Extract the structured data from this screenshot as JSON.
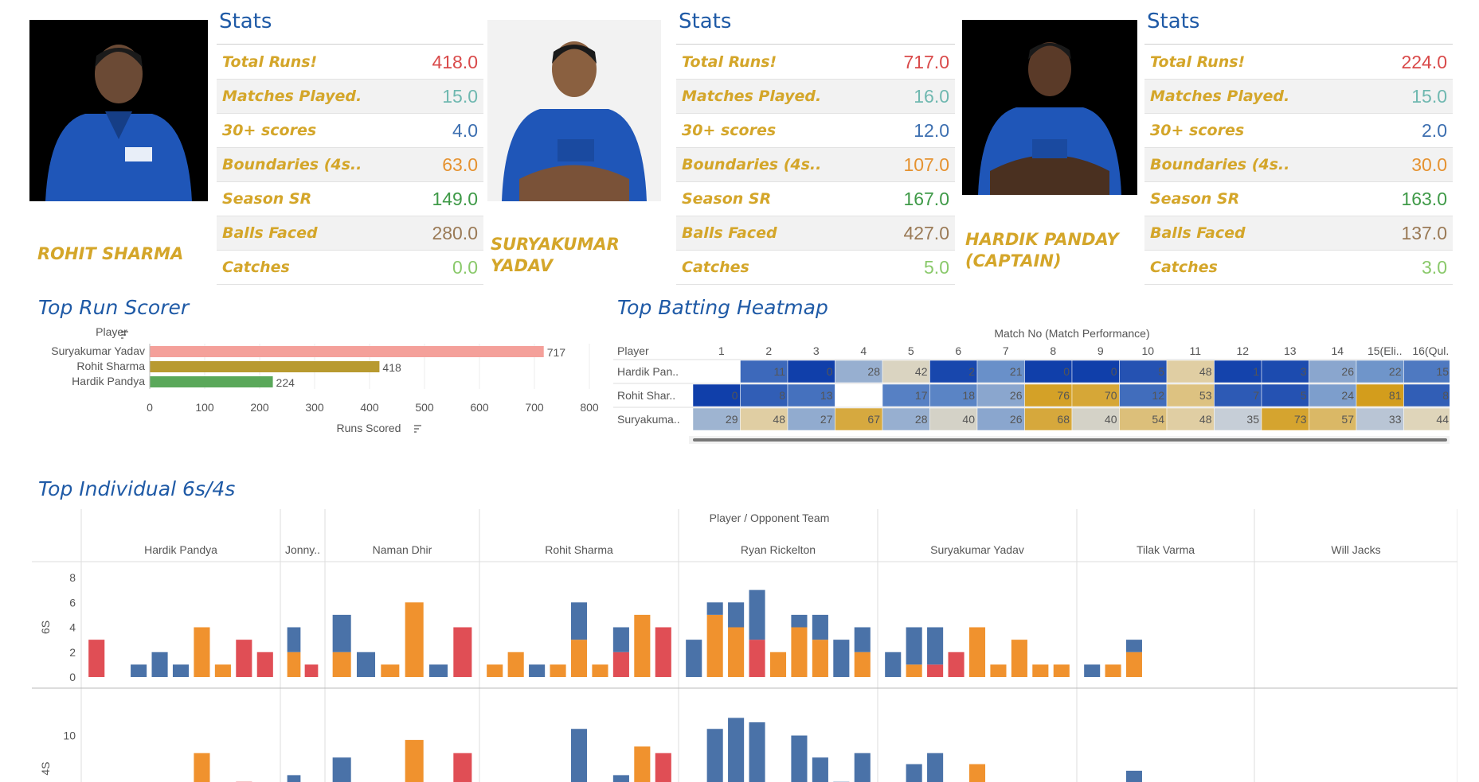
{
  "stats_label": "Stats",
  "stat_keys": [
    "Total Runs!",
    "Matches Played.",
    "30+ scores",
    "Boundaries (4s..",
    "Season  SR",
    "Balls Faced",
    "Catches"
  ],
  "stat_colors": [
    "#d94a4a",
    "#6fb8b0",
    "#3d6fb0",
    "#e59230",
    "#3f9a48",
    "#9a7a56",
    "#8ac96b"
  ],
  "players": [
    {
      "name": "ROHIT SHARMA",
      "values": [
        "418.0",
        "15.0",
        "4.0",
        "63.0",
        "149.0",
        "280.0",
        "0.0"
      ]
    },
    {
      "name": "SURYAKUMAR YADAV",
      "values": [
        "717.0",
        "16.0",
        "12.0",
        "107.0",
        "167.0",
        "427.0",
        "5.0"
      ]
    },
    {
      "name": "HARDIK PANDAY (CAPTAIN)",
      "values": [
        "224.0",
        "15.0",
        "2.0",
        "30.0",
        "163.0",
        "137.0",
        "3.0"
      ]
    }
  ],
  "sections": {
    "top_run_scorer": "Top Run Scorer",
    "top_batting_heatmap": "Top Batting Heatmap",
    "top_individual": "Top Individual 6s/4s"
  },
  "chart_data": [
    {
      "type": "bar",
      "title": "Top Run Scorer",
      "orientation": "horizontal",
      "ylabel": "Player",
      "xlabel": "Runs Scored",
      "categories": [
        "Suryakumar Yadav",
        "Rohit Sharma",
        "Hardik Pandya"
      ],
      "values": [
        717,
        418,
        224
      ],
      "colors": [
        "#f4a09a",
        "#b89a30",
        "#5aa85a"
      ],
      "xlim": [
        0,
        800
      ],
      "xticks": [
        "0",
        "100",
        "200",
        "300",
        "400",
        "500",
        "600",
        "700",
        "800"
      ]
    },
    {
      "type": "heatmap",
      "title": "Top Batting Heatmap",
      "column_header": "Match No (Match Performance)",
      "row_header": "Player",
      "columns": [
        "1",
        "2",
        "3",
        "4",
        "5",
        "6",
        "7",
        "8",
        "9",
        "10",
        "11",
        "12",
        "13",
        "14",
        "15(Eli..",
        "16(Qul.."
      ],
      "rows": [
        "Hardik Pan..",
        "Rohit Shar..",
        "Suryakuma.."
      ],
      "values": [
        [
          null,
          11,
          0,
          28,
          42,
          2,
          21,
          0,
          0,
          5,
          48,
          1,
          3,
          26,
          22,
          15
        ],
        [
          0,
          8,
          13,
          null,
          17,
          18,
          26,
          76,
          70,
          12,
          53,
          7,
          5,
          24,
          81,
          8
        ],
        [
          29,
          48,
          27,
          67,
          28,
          40,
          26,
          68,
          40,
          54,
          48,
          35,
          73,
          57,
          33,
          44
        ]
      ]
    },
    {
      "type": "bar",
      "title": "Top Individual 6s/4s",
      "header": "Player  /  Opponent Team",
      "groups": [
        "Hardik Pandya",
        "Jonny..",
        "Naman Dhir",
        "Rohit Sharma",
        "Ryan Rickelton",
        "Suryakumar Yadav",
        "Tilak Varma",
        "Will Jacks"
      ],
      "group_bar_counts": [
        9,
        2,
        6,
        9,
        9,
        9,
        8,
        9
      ],
      "panels": [
        {
          "label": "6S",
          "ylim": [
            0,
            8
          ],
          "yticks": [
            "0",
            "2",
            "4",
            "6",
            "8"
          ]
        },
        {
          "label": "4S",
          "ylim": [
            0,
            13
          ],
          "yticks": [
            "5",
            "10"
          ]
        }
      ],
      "series_colors": {
        "orange": "#f0922e",
        "blue": "#4a72a8",
        "red": "#e04e55"
      },
      "sixes": [
        [
          [],
          [
            3,
            "red"
          ]
        ],
        [
          [],
          [
            0
          ]
        ],
        [
          [
            1,
            "blue"
          ]
        ],
        [
          [
            2,
            "blue"
          ]
        ],
        [
          [
            1,
            "blue"
          ]
        ],
        [
          [
            4,
            "orange"
          ]
        ],
        [
          [
            1,
            "orange"
          ]
        ],
        [
          [
            3,
            "red"
          ]
        ],
        [
          [
            2,
            "red"
          ]
        ],
        [
          [
            2,
            "orange"
          ],
          [
            2,
            "blue"
          ]
        ],
        [
          [
            1,
            "red"
          ]
        ],
        [
          [
            2,
            "orange"
          ],
          [
            3,
            "blue"
          ]
        ],
        [
          [
            2,
            "blue"
          ]
        ],
        [
          [
            1,
            "orange"
          ]
        ],
        [
          [
            6,
            "orange"
          ]
        ],
        [
          [
            1,
            "blue"
          ]
        ],
        [
          [
            4,
            "red"
          ]
        ],
        [
          [
            1,
            "orange"
          ]
        ],
        [
          [
            2,
            "orange"
          ]
        ],
        [
          [
            1,
            "blue"
          ]
        ],
        [
          [
            1,
            "orange"
          ]
        ],
        [
          [
            3,
            "orange"
          ],
          [
            3,
            "blue"
          ]
        ],
        [
          [
            1,
            "orange"
          ]
        ],
        [
          [
            2,
            "red"
          ],
          [
            2,
            "blue"
          ]
        ],
        [
          [
            5,
            "orange"
          ]
        ],
        [
          [
            4,
            "red"
          ]
        ],
        [
          [
            3,
            "blue"
          ]
        ],
        [
          [
            5,
            "orange"
          ],
          [
            1,
            "blue"
          ]
        ],
        [
          [
            4,
            "orange"
          ],
          [
            2,
            "blue"
          ]
        ],
        [
          [
            3,
            "red"
          ],
          [
            4,
            "blue"
          ]
        ],
        [
          [
            2,
            "orange"
          ]
        ],
        [
          [
            4,
            "orange"
          ],
          [
            1,
            "blue"
          ]
        ],
        [
          [
            3,
            "orange"
          ],
          [
            2,
            "blue"
          ]
        ],
        [
          [
            3,
            "blue"
          ]
        ],
        [
          [
            2,
            "orange"
          ],
          [
            2,
            "blue"
          ]
        ],
        [
          [
            2,
            "blue"
          ]
        ],
        [
          [
            1,
            "orange"
          ],
          [
            3,
            "blue"
          ]
        ],
        [
          [
            1,
            "red"
          ],
          [
            3,
            "blue"
          ]
        ],
        [
          [
            2,
            "red"
          ]
        ],
        [
          [
            4,
            "orange"
          ]
        ],
        [
          [
            1,
            "orange"
          ]
        ],
        [
          [
            3,
            "orange"
          ]
        ],
        [
          [
            1,
            "orange"
          ]
        ],
        [
          [
            1,
            "orange"
          ]
        ],
        [
          [
            1,
            "blue"
          ]
        ],
        [
          [
            1,
            "orange"
          ]
        ],
        [
          [
            2,
            "orange"
          ],
          [
            1,
            "blue"
          ]
        ]
      ]
    }
  ]
}
